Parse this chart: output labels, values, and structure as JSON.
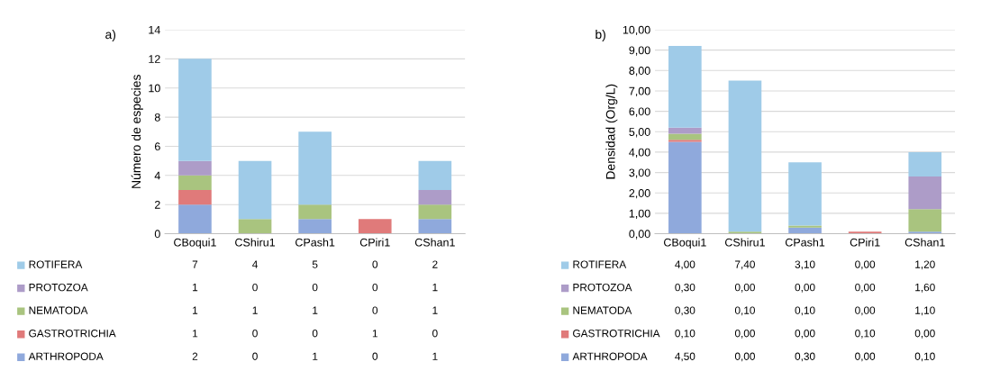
{
  "chart_data": [
    {
      "type": "bar",
      "title": "a)",
      "ylabel": "Número de especies",
      "stacked": true,
      "data_labels": true,
      "grid": "y",
      "legend": "bottom",
      "categories": [
        "CBoqui1",
        "CShiru1",
        "CPash1",
        "CPiri1",
        "CShan1"
      ],
      "ylim": [
        0,
        14
      ],
      "yticks": [
        0,
        2,
        4,
        6,
        8,
        10,
        12,
        14
      ],
      "series": [
        {
          "name": "ARTHROPODA",
          "color": "#8fa9dc",
          "values": [
            2,
            0,
            1,
            0,
            1
          ]
        },
        {
          "name": "GASTROTRICHIA",
          "color": "#e07a7a",
          "values": [
            1,
            0,
            0,
            1,
            0
          ]
        },
        {
          "name": "NEMATODA",
          "color": "#a9c47f",
          "values": [
            1,
            1,
            1,
            0,
            1
          ]
        },
        {
          "name": "PROTOZOA",
          "color": "#ad9cc8",
          "values": [
            1,
            0,
            0,
            0,
            1
          ]
        },
        {
          "name": "ROTIFERA",
          "color": "#9fcbe8",
          "values": [
            7,
            4,
            5,
            0,
            2
          ]
        }
      ]
    },
    {
      "type": "bar",
      "title": "b)",
      "ylabel": "Densidad (Org/L)",
      "stacked": true,
      "grid": "y",
      "legend": "bottom",
      "categories": [
        "CBoqui1",
        "CShiru1",
        "CPash1",
        "CPiri1",
        "CShan1"
      ],
      "ylim": [
        0,
        10
      ],
      "yticks": [
        {
          "value": 0,
          "label": "0,00"
        },
        {
          "value": 1,
          "label": "1,00"
        },
        {
          "value": 2,
          "label": "2,00"
        },
        {
          "value": 3,
          "label": "3,00"
        },
        {
          "value": 4,
          "label": "4,00"
        },
        {
          "value": 5,
          "label": "5,00"
        },
        {
          "value": 6,
          "label": "6,00"
        },
        {
          "value": 7,
          "label": "7,00"
        },
        {
          "value": 8,
          "label": "8,00"
        },
        {
          "value": 9,
          "label": "9,00"
        },
        {
          "value": 10,
          "label": "10,00"
        }
      ],
      "series": [
        {
          "name": "ARTHROPODA",
          "color": "#8fa9dc",
          "values": [
            4.5,
            0,
            0.3,
            0,
            0.1
          ],
          "value_labels": [
            "4,50",
            "0,00",
            "0,30",
            "0,00",
            "0,10"
          ]
        },
        {
          "name": "GASTROTRICHIA",
          "color": "#e07a7a",
          "values": [
            0.1,
            0,
            0,
            0.1,
            0
          ],
          "value_labels": [
            "0,10",
            "0,00",
            "0,00",
            "0,10",
            "0,00"
          ]
        },
        {
          "name": "NEMATODA",
          "color": "#a9c47f",
          "values": [
            0.3,
            0.1,
            0.1,
            0,
            1.1
          ],
          "value_labels": [
            "0,30",
            "0,10",
            "0,10",
            "0,00",
            "1,10"
          ]
        },
        {
          "name": "PROTOZOA",
          "color": "#ad9cc8",
          "values": [
            0.3,
            0,
            0,
            0,
            1.6
          ],
          "value_labels": [
            "0,30",
            "0,00",
            "0,00",
            "0,00",
            "1,60"
          ]
        },
        {
          "name": "ROTIFERA",
          "color": "#9fcbe8",
          "values": [
            4,
            7.4,
            3.1,
            0,
            1.2
          ],
          "value_labels": [
            "4,00",
            "7,40",
            "3,10",
            "0,00",
            "1,20"
          ]
        }
      ]
    }
  ]
}
